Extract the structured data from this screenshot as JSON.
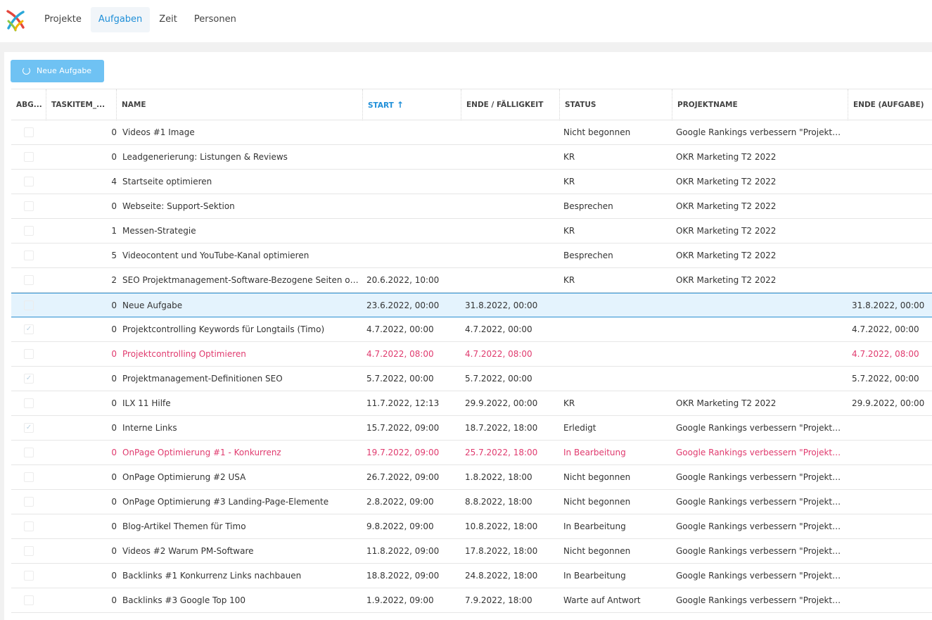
{
  "nav": {
    "items": [
      {
        "label": "Projekte",
        "active": false
      },
      {
        "label": "Aufgaben",
        "active": true
      },
      {
        "label": "Zeit",
        "active": false
      },
      {
        "label": "Personen",
        "active": false
      }
    ]
  },
  "toolbar": {
    "new_task_label": "Neue Aufgabe"
  },
  "colors": {
    "accent": "#1f8fd8",
    "button": "#6fc2f3",
    "overdue": "#e03a6e",
    "selected_row": "#e4f3fd"
  },
  "table": {
    "columns": [
      {
        "key": "done",
        "label": "ABG..."
      },
      {
        "key": "taskitem",
        "label": "TASKITEM_..."
      },
      {
        "key": "name",
        "label": "NAME"
      },
      {
        "key": "start",
        "label": "START",
        "sorted": "asc"
      },
      {
        "key": "end",
        "label": "ENDE / FÄLLIGKEIT"
      },
      {
        "key": "status",
        "label": "STATUS"
      },
      {
        "key": "project",
        "label": "PROJEKTNAME"
      },
      {
        "key": "task_end",
        "label": "ENDE (AUFGABE)"
      }
    ],
    "rows": [
      {
        "checked": false,
        "taskitem": "0",
        "name": "Videos #1 Image",
        "start": "",
        "end": "",
        "status": "Nicht begonnen",
        "project": "Google Rankings verbessern \"Projektmanagement\"",
        "task_end": ""
      },
      {
        "checked": false,
        "taskitem": "0",
        "name": "Leadgenerierung: Listungen & Reviews",
        "start": "",
        "end": "",
        "status": "KR",
        "project": "OKR Marketing T2 2022",
        "task_end": ""
      },
      {
        "checked": false,
        "taskitem": "4",
        "name": "Startseite optimieren",
        "start": "",
        "end": "",
        "status": "KR",
        "project": "OKR Marketing T2 2022",
        "task_end": ""
      },
      {
        "checked": false,
        "taskitem": "0",
        "name": "Webseite: Support-Sektion",
        "start": "",
        "end": "",
        "status": "Besprechen",
        "project": "OKR Marketing T2 2022",
        "task_end": ""
      },
      {
        "checked": false,
        "taskitem": "1",
        "name": "Messen-Strategie",
        "start": "",
        "end": "",
        "status": "KR",
        "project": "OKR Marketing T2 2022",
        "task_end": ""
      },
      {
        "checked": false,
        "taskitem": "5",
        "name": "Videocontent und YouTube-Kanal optimieren",
        "start": "",
        "end": "",
        "status": "Besprechen",
        "project": "OKR Marketing T2 2022",
        "task_end": ""
      },
      {
        "checked": false,
        "taskitem": "2",
        "name": "SEO Projektmanagement-Software-Bezogene Seiten optimieren",
        "start": "20.6.2022, 10:00",
        "end": "",
        "status": "KR",
        "project": "OKR Marketing T2 2022",
        "task_end": ""
      },
      {
        "checked": false,
        "taskitem": "0",
        "name": "Neue Aufgabe",
        "start": "23.6.2022, 00:00",
        "end": "31.8.2022, 00:00",
        "status": "",
        "project": "",
        "task_end": "31.8.2022, 00:00",
        "selected": true
      },
      {
        "checked": true,
        "taskitem": "0",
        "name": "Projektcontrolling Keywords für Longtails (Timo)",
        "start": "4.7.2022, 00:00",
        "end": "4.7.2022, 00:00",
        "status": "",
        "project": "",
        "task_end": "4.7.2022, 00:00"
      },
      {
        "checked": false,
        "taskitem": "0",
        "name": "Projektcontrolling Optimieren",
        "start": "4.7.2022, 08:00",
        "end": "4.7.2022, 08:00",
        "status": "",
        "project": "",
        "task_end": "4.7.2022, 08:00",
        "overdue": true
      },
      {
        "checked": true,
        "taskitem": "0",
        "name": "Projektmanagement-Definitionen SEO",
        "start": "5.7.2022, 00:00",
        "end": "5.7.2022, 00:00",
        "status": "",
        "project": "",
        "task_end": "5.7.2022, 00:00"
      },
      {
        "checked": false,
        "taskitem": "0",
        "name": "ILX 11 Hilfe",
        "start": "11.7.2022, 12:13",
        "end": "29.9.2022, 00:00",
        "status": "KR",
        "project": "OKR Marketing T2 2022",
        "task_end": "29.9.2022, 00:00"
      },
      {
        "checked": true,
        "taskitem": "0",
        "name": "Interne Links",
        "start": "15.7.2022, 09:00",
        "end": "18.7.2022, 18:00",
        "status": "Erledigt",
        "project": "Google Rankings verbessern \"Projektmanagement\"",
        "task_end": ""
      },
      {
        "checked": false,
        "taskitem": "0",
        "name": "OnPage Optimierung #1 - Konkurrenz",
        "start": "19.7.2022, 09:00",
        "end": "25.7.2022, 18:00",
        "status": "In Bearbeitung",
        "project": "Google Rankings verbessern \"Projektmanagement\"",
        "task_end": "",
        "overdue": true
      },
      {
        "checked": false,
        "taskitem": "0",
        "name": "OnPage Optimierung #2 USA",
        "start": "26.7.2022, 09:00",
        "end": "1.8.2022, 18:00",
        "status": "Nicht begonnen",
        "project": "Google Rankings verbessern \"Projektmanagement\"",
        "task_end": ""
      },
      {
        "checked": false,
        "taskitem": "0",
        "name": "OnPage Optimierung #3 Landing-Page-Elemente",
        "start": "2.8.2022, 09:00",
        "end": "8.8.2022, 18:00",
        "status": "Nicht begonnen",
        "project": "Google Rankings verbessern \"Projektmanagement\"",
        "task_end": ""
      },
      {
        "checked": false,
        "taskitem": "0",
        "name": "Blog-Artikel Themen für Timo",
        "start": "9.8.2022, 09:00",
        "end": "10.8.2022, 18:00",
        "status": "In Bearbeitung",
        "project": "Google Rankings verbessern \"Projektmanagement\"",
        "task_end": ""
      },
      {
        "checked": false,
        "taskitem": "0",
        "name": "Videos #2 Warum PM-Software",
        "start": "11.8.2022, 09:00",
        "end": "17.8.2022, 18:00",
        "status": "Nicht begonnen",
        "project": "Google Rankings verbessern \"Projektmanagement\"",
        "task_end": ""
      },
      {
        "checked": false,
        "taskitem": "0",
        "name": "Backlinks #1 Konkurrenz Links nachbauen",
        "start": "18.8.2022, 09:00",
        "end": "24.8.2022, 18:00",
        "status": "In Bearbeitung",
        "project": "Google Rankings verbessern \"Projektmanagement\"",
        "task_end": ""
      },
      {
        "checked": false,
        "taskitem": "0",
        "name": "Backlinks #3 Google Top 100",
        "start": "1.9.2022, 09:00",
        "end": "7.9.2022, 18:00",
        "status": "Warte auf Antwort",
        "project": "Google Rankings verbessern \"Projektmanagement\"",
        "task_end": ""
      }
    ]
  }
}
